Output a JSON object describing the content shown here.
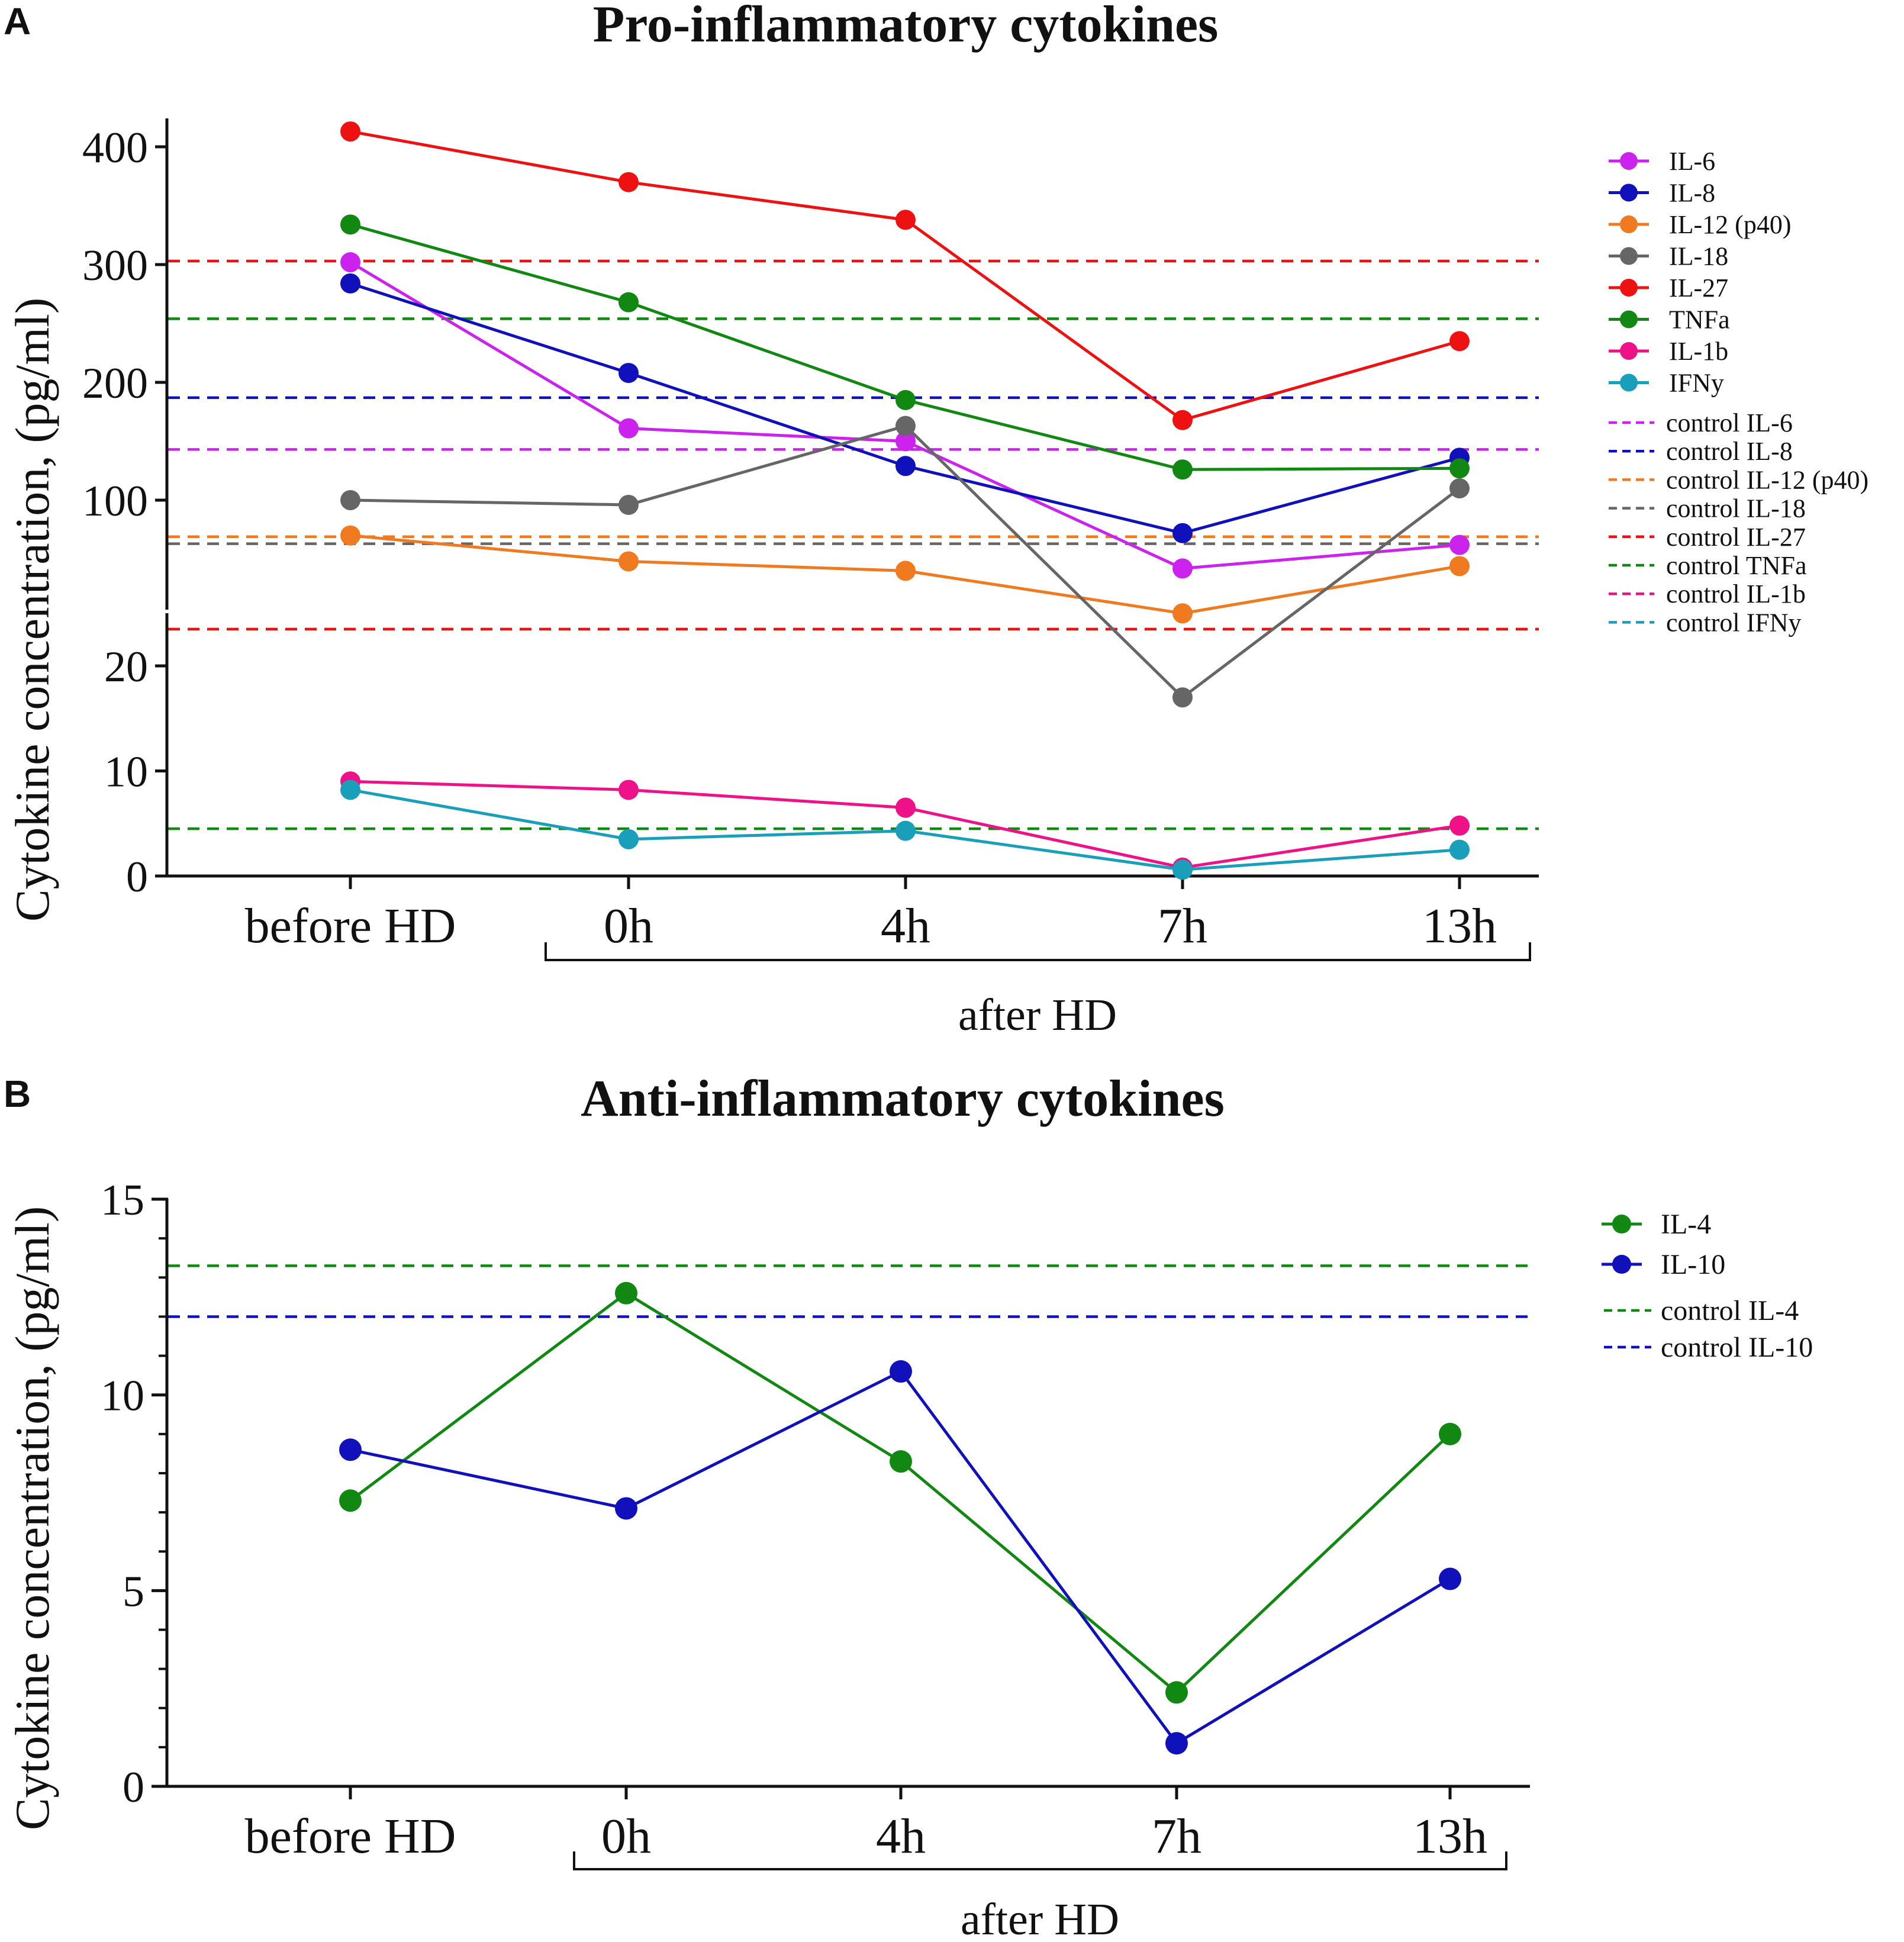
{
  "panels": {
    "A": {
      "letter": "A",
      "title": "Pro-inflammatory cytokines",
      "ylabel": "Cytokine concentration, (pg/ml)",
      "group_label": "after HD"
    },
    "B": {
      "letter": "B",
      "title": "Anti-inflammatory cytokines",
      "ylabel": "Cytokine concentration, (pg/ml)",
      "group_label": "after HD"
    }
  },
  "chart_data": [
    {
      "panel": "A",
      "type": "line",
      "title": "Pro-inflammatory cytokines",
      "xlabel": "",
      "ylabel": "Cytokine concentration, (pg/ml)",
      "categories": [
        "before HD",
        "0h",
        "4h",
        "7h",
        "13h"
      ],
      "x_group": {
        "label": "after HD",
        "from": "0h",
        "to": "13h"
      },
      "y_axis": {
        "segmented": true,
        "lower": {
          "range": [
            0,
            25
          ],
          "ticks": [
            0,
            10,
            20
          ]
        },
        "upper": {
          "range": [
            36,
            420
          ],
          "ticks": [
            100,
            200,
            300,
            400
          ]
        }
      },
      "series": [
        {
          "name": "IL-6",
          "color": "#cc22ee",
          "values": [
            302,
            161,
            150,
            42,
            62
          ]
        },
        {
          "name": "IL-8",
          "color": "#1111bb",
          "values": [
            284,
            208,
            129,
            72,
            136
          ]
        },
        {
          "name": "IL-12 (p40)",
          "color": "#f07a20",
          "values": [
            70,
            48,
            40,
            25,
            44
          ]
        },
        {
          "name": "IL-18",
          "color": "#666666",
          "values": [
            100,
            96,
            163,
            17,
            110
          ]
        },
        {
          "name": "IL-27",
          "color": "#ee1111",
          "values": [
            413,
            370,
            338,
            168,
            235
          ]
        },
        {
          "name": "TNFa",
          "color": "#118811",
          "values": [
            334,
            268,
            185,
            126,
            127
          ]
        },
        {
          "name": "IL-1b",
          "color": "#ee1188",
          "values": [
            9.0,
            8.2,
            6.5,
            0.8,
            4.8
          ]
        },
        {
          "name": "IFNy",
          "color": "#1a9fbb",
          "values": [
            8.2,
            3.5,
            4.3,
            0.6,
            2.5
          ]
        }
      ],
      "controls": [
        {
          "name": "control IL-6",
          "color": "#cc22ee",
          "value": 143
        },
        {
          "name": "control IL-8",
          "color": "#1111bb",
          "value": 187
        },
        {
          "name": "control IL-12 (p40)",
          "color": "#f07a20",
          "value": 69
        },
        {
          "name": "control IL-18",
          "color": "#666666",
          "value": 63
        },
        {
          "name": "control IL-27",
          "color": "#ee1111",
          "value": 303
        },
        {
          "name": "control TNFa",
          "color": "#118811",
          "value": 254
        },
        {
          "name": "control IL-1b",
          "color": "#ee1188",
          "value": null
        },
        {
          "name": "control IFNy",
          "color": "#1a9fbb",
          "value": null
        }
      ],
      "extra_reference_lines": [
        {
          "segment": "lower",
          "color": "#ee1111",
          "value": 23.5
        },
        {
          "segment": "lower",
          "color": "#118811",
          "value": 4.5
        }
      ],
      "legend_position": "right"
    },
    {
      "panel": "B",
      "type": "line",
      "title": "Anti-inflammatory cytokines",
      "xlabel": "",
      "ylabel": "Cytokine concentration, (pg/ml)",
      "categories": [
        "before HD",
        "0h",
        "4h",
        "7h",
        "13h"
      ],
      "x_group": {
        "label": "after HD",
        "from": "0h",
        "to": "13h"
      },
      "ylim": [
        0,
        15
      ],
      "yticks": [
        0,
        5,
        10,
        15
      ],
      "series": [
        {
          "name": "IL-4",
          "color": "#118811",
          "values": [
            7.3,
            12.6,
            8.3,
            2.4,
            9.0
          ]
        },
        {
          "name": "IL-10",
          "color": "#1111bb",
          "values": [
            8.6,
            7.1,
            10.6,
            1.1,
            5.3
          ]
        }
      ],
      "controls": [
        {
          "name": "control IL-4",
          "color": "#118811",
          "value": 13.3
        },
        {
          "name": "control IL-10",
          "color": "#1111bb",
          "value": 12.0
        }
      ],
      "legend_position": "right"
    }
  ]
}
